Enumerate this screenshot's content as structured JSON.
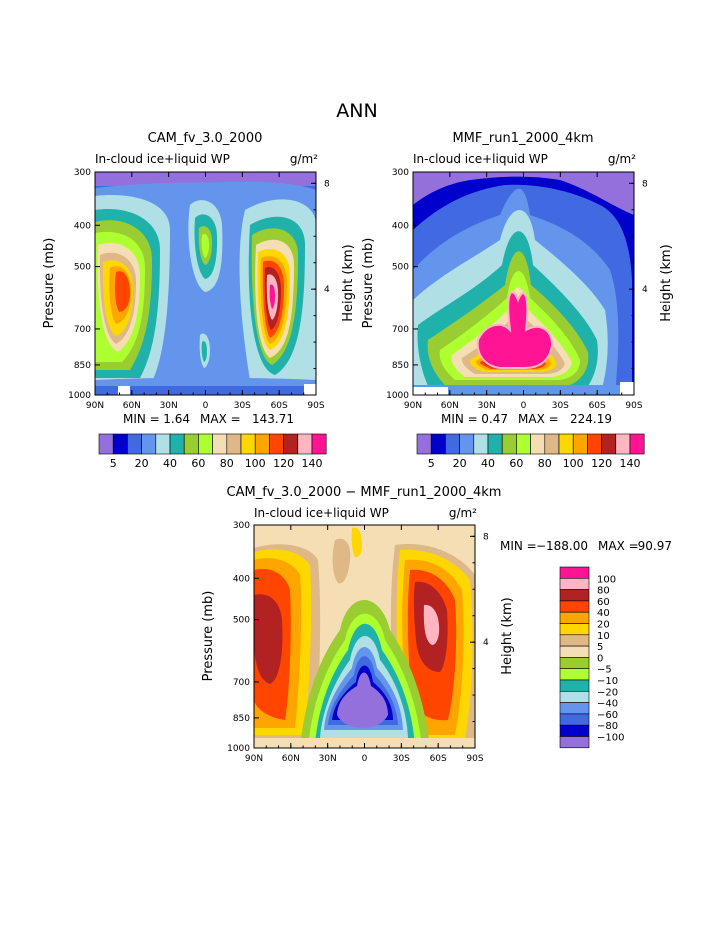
{
  "page": {
    "title": "ANN"
  },
  "chart_data": [
    {
      "type": "heatmap",
      "title": "CAM_fv_3.0_2000",
      "subtitle": "In-cloud ice+liquid WP",
      "units": "g/m²",
      "xlabel": "",
      "ylabel": "Pressure (mb)",
      "y2label": "Height (km)",
      "x_ticks": [
        "90N",
        "60N",
        "30N",
        "0",
        "30S",
        "60S",
        "90S"
      ],
      "y_ticks": [
        "300",
        "400",
        "500",
        "700",
        "850",
        "1000"
      ],
      "y2_ticks": [
        "8",
        "4"
      ],
      "stats": {
        "min_label": "MIN =",
        "min": "1.64",
        "max_label": "MAX =",
        "max": "143.71"
      },
      "levels": [
        "5",
        "10",
        "20",
        "30",
        "40",
        "50",
        "60",
        "70",
        "80",
        "90",
        "100",
        "110",
        "120",
        "130",
        "140"
      ],
      "level_labels": [
        "5",
        "20",
        "40",
        "60",
        "80",
        "100",
        "120",
        "140"
      ],
      "colors": [
        "#9370db",
        "#0000cd",
        "#4169e1",
        "#6495ed",
        "#b0e0e6",
        "#20b2aa",
        "#9acd32",
        "#adff2f",
        "#f5deb3",
        "#deb887",
        "#ffd700",
        "#ffa500",
        "#ff4500",
        "#b22222",
        "#ffb6c1",
        "#ff1493"
      ]
    },
    {
      "type": "heatmap",
      "title": "MMF_run1_2000_4km",
      "subtitle": "In-cloud ice+liquid WP",
      "units": "g/m²",
      "xlabel": "",
      "ylabel": "Pressure (mb)",
      "y2label": "Height (km)",
      "x_ticks": [
        "90N",
        "60N",
        "30N",
        "0",
        "30S",
        "60S",
        "90S"
      ],
      "y_ticks": [
        "300",
        "400",
        "500",
        "700",
        "850",
        "1000"
      ],
      "y2_ticks": [
        "8",
        "4"
      ],
      "stats": {
        "min_label": "MIN =",
        "min": "0.47",
        "max_label": "MAX =",
        "max": "224.19"
      },
      "levels": [
        "5",
        "10",
        "20",
        "30",
        "40",
        "50",
        "60",
        "70",
        "80",
        "90",
        "100",
        "110",
        "120",
        "130",
        "140"
      ],
      "level_labels": [
        "5",
        "20",
        "40",
        "60",
        "80",
        "100",
        "120",
        "140"
      ],
      "colors": [
        "#9370db",
        "#0000cd",
        "#4169e1",
        "#6495ed",
        "#b0e0e6",
        "#20b2aa",
        "#9acd32",
        "#adff2f",
        "#f5deb3",
        "#deb887",
        "#ffd700",
        "#ffa500",
        "#ff4500",
        "#b22222",
        "#ffb6c1",
        "#ff1493"
      ]
    },
    {
      "type": "heatmap",
      "title": "CAM_fv_3.0_2000 − MMF_run1_2000_4km",
      "subtitle": "In-cloud ice+liquid WP",
      "units": "g/m²",
      "xlabel": "",
      "ylabel": "Pressure (mb)",
      "y2label": "Height (km)",
      "x_ticks": [
        "90N",
        "60N",
        "30N",
        "0",
        "30S",
        "60S",
        "90S"
      ],
      "y_ticks": [
        "300",
        "400",
        "500",
        "700",
        "850",
        "1000"
      ],
      "y2_ticks": [
        "8",
        "4"
      ],
      "stats": {
        "min_label": "MIN =",
        "min": "−188.00",
        "max_label": "MAX =",
        "max": "90.97"
      },
      "levels": [
        "100",
        "80",
        "60",
        "40",
        "20",
        "10",
        "5",
        "0",
        "−5",
        "−10",
        "−20",
        "−40",
        "−60",
        "−80",
        "−100"
      ],
      "colors": [
        "#ff1493",
        "#ffb6c1",
        "#b22222",
        "#ff4500",
        "#ffa500",
        "#ffd700",
        "#deb887",
        "#f5deb3",
        "#9acd32",
        "#adff2f",
        "#20b2aa",
        "#b0e0e6",
        "#6495ed",
        "#4169e1",
        "#0000cd",
        "#9370db"
      ]
    }
  ]
}
